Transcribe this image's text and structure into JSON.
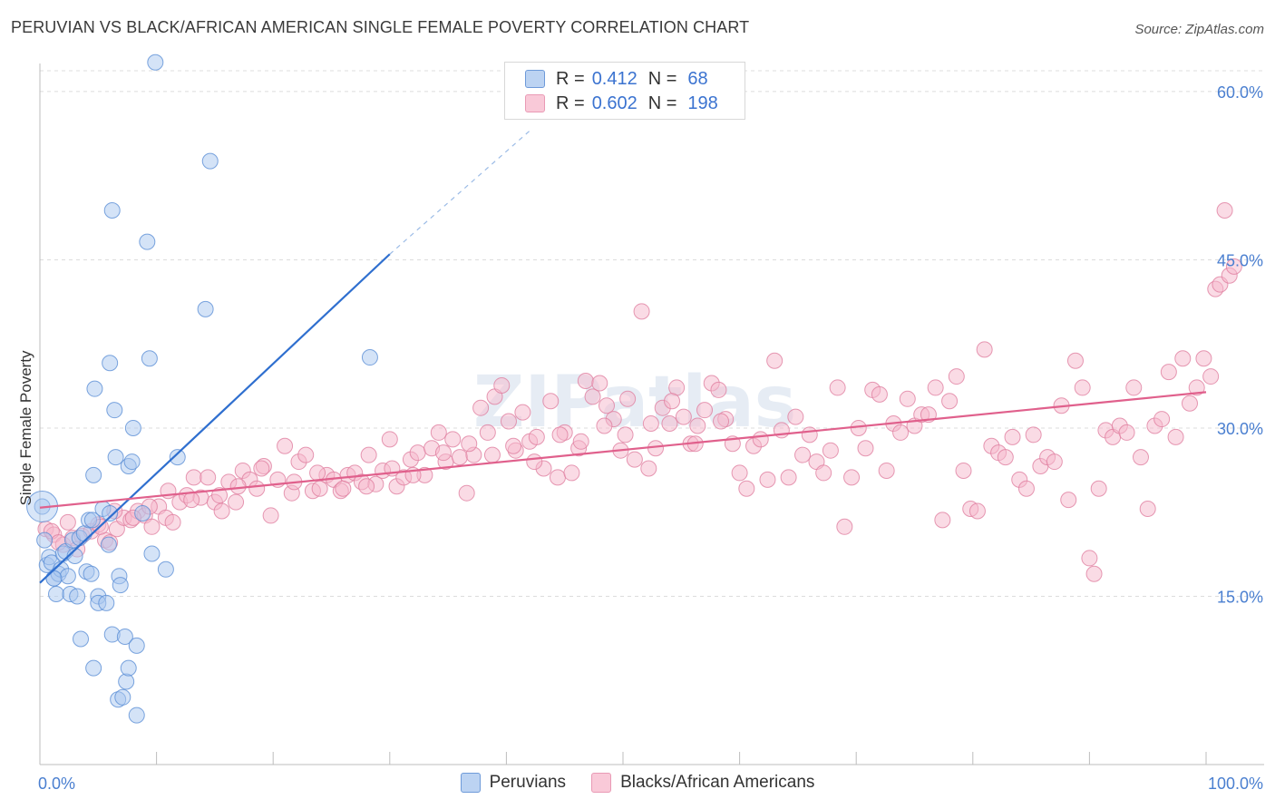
{
  "title": "PERUVIAN VS BLACK/AFRICAN AMERICAN SINGLE FEMALE POVERTY CORRELATION CHART",
  "source": "Source: ZipAtlas.com",
  "colors": {
    "blue_fill": "#a9c7ef",
    "blue_stroke": "#5b8fd6",
    "blue_line": "#2f6fcf",
    "pink_fill": "#f5b8cb",
    "pink_stroke": "#e07fa0",
    "pink_line": "#e0608c",
    "axis_label": "#4a7fd0"
  },
  "legend": {
    "r_label": "R =",
    "n_label": "N =",
    "rows": [
      {
        "r": "0.412",
        "n": "68",
        "series": "Peruvians"
      },
      {
        "r": "0.602",
        "n": "198",
        "series": "Blacks/African Americans"
      }
    ]
  },
  "bottom_legend": [
    "Peruvians",
    "Blacks/African Americans"
  ],
  "chart_data": {
    "type": "scatter",
    "title": "PERUVIAN VS BLACK/AFRICAN AMERICAN SINGLE FEMALE POVERTY CORRELATION CHART",
    "xlabel": "",
    "ylabel": "Single Female Poverty",
    "xlim": [
      0,
      100
    ],
    "ylim": [
      0,
      62.5
    ],
    "x_tick_labels": [
      "0.0%",
      "100.0%"
    ],
    "y_ticks": [
      15,
      30,
      45,
      60
    ],
    "y_tick_labels": [
      "15.0%",
      "30.0%",
      "45.0%",
      "60.0%"
    ],
    "grid": "horizontal dashed",
    "legend_position": "top-center",
    "series": [
      {
        "name": "Peruvians",
        "color": "#a9c7ef",
        "trend": {
          "x0": 0,
          "y0": 16.2,
          "x1": 30,
          "y1": 45.5,
          "dashed_to_x": 42,
          "dashed_to_y": 56.5
        },
        "points": [
          [
            0.2,
            23.0
          ],
          [
            0.4,
            20.0
          ],
          [
            0.6,
            17.8
          ],
          [
            0.8,
            18.5
          ],
          [
            1.0,
            18.0
          ],
          [
            1.2,
            16.6
          ],
          [
            1.4,
            15.2
          ],
          [
            1.6,
            17.0
          ],
          [
            1.8,
            17.4
          ],
          [
            2.0,
            18.8
          ],
          [
            2.2,
            19.0
          ],
          [
            2.4,
            16.8
          ],
          [
            2.6,
            15.2
          ],
          [
            2.8,
            20.0
          ],
          [
            3.0,
            18.6
          ],
          [
            3.2,
            15.0
          ],
          [
            3.4,
            20.2
          ],
          [
            3.5,
            11.2
          ],
          [
            3.8,
            20.6
          ],
          [
            4.0,
            17.2
          ],
          [
            4.2,
            21.8
          ],
          [
            4.4,
            17.0
          ],
          [
            4.5,
            21.8
          ],
          [
            4.6,
            25.8
          ],
          [
            4.7,
            33.5
          ],
          [
            4.6,
            8.6
          ],
          [
            5.0,
            15.0
          ],
          [
            5.0,
            14.4
          ],
          [
            5.4,
            22.8
          ],
          [
            5.7,
            14.4
          ],
          [
            5.9,
            19.6
          ],
          [
            6.0,
            22.4
          ],
          [
            6.0,
            35.8
          ],
          [
            6.2,
            11.6
          ],
          [
            6.2,
            49.4
          ],
          [
            6.4,
            31.6
          ],
          [
            6.5,
            27.4
          ],
          [
            6.7,
            5.8
          ],
          [
            6.8,
            16.8
          ],
          [
            6.9,
            16.0
          ],
          [
            7.1,
            6.0
          ],
          [
            7.3,
            11.4
          ],
          [
            7.4,
            7.4
          ],
          [
            7.6,
            8.6
          ],
          [
            7.6,
            26.6
          ],
          [
            7.9,
            27.0
          ],
          [
            8.0,
            30.0
          ],
          [
            8.3,
            10.6
          ],
          [
            8.3,
            4.4
          ],
          [
            8.8,
            22.4
          ],
          [
            9.2,
            46.6
          ],
          [
            9.4,
            36.2
          ],
          [
            9.6,
            18.8
          ],
          [
            9.9,
            62.6
          ],
          [
            10.8,
            17.4
          ],
          [
            11.8,
            27.4
          ],
          [
            14.2,
            40.6
          ],
          [
            14.6,
            53.8
          ],
          [
            28.3,
            36.3
          ],
          [
            1.2,
            16.6
          ]
        ]
      },
      {
        "name": "Blacks/African Americans",
        "color": "#f5b8cb",
        "trend": {
          "x0": 0,
          "y0": 22.9,
          "x1": 100,
          "y1": 33.2
        },
        "points": [
          [
            0.5,
            21.0
          ],
          [
            1.2,
            20.5
          ],
          [
            2.0,
            19.6
          ],
          [
            2.8,
            20.2
          ],
          [
            3.6,
            20.4
          ],
          [
            4.4,
            20.8
          ],
          [
            5.0,
            21.4
          ],
          [
            5.6,
            20.0
          ],
          [
            6.0,
            19.8
          ],
          [
            6.6,
            21.0
          ],
          [
            7.2,
            22.0
          ],
          [
            7.8,
            21.8
          ],
          [
            8.4,
            22.6
          ],
          [
            9.0,
            22.2
          ],
          [
            9.6,
            21.2
          ],
          [
            10.2,
            23.0
          ],
          [
            10.8,
            22.0
          ],
          [
            11.4,
            21.6
          ],
          [
            12.0,
            23.4
          ],
          [
            12.6,
            24.0
          ],
          [
            13.2,
            25.6
          ],
          [
            13.8,
            23.8
          ],
          [
            14.4,
            25.6
          ],
          [
            15.0,
            23.4
          ],
          [
            15.6,
            22.6
          ],
          [
            16.2,
            25.2
          ],
          [
            16.8,
            23.4
          ],
          [
            17.4,
            26.2
          ],
          [
            18.0,
            25.4
          ],
          [
            18.6,
            24.6
          ],
          [
            19.2,
            26.6
          ],
          [
            19.8,
            22.2
          ],
          [
            20.4,
            25.4
          ],
          [
            21.0,
            28.4
          ],
          [
            21.6,
            24.2
          ],
          [
            22.2,
            27.0
          ],
          [
            22.8,
            27.6
          ],
          [
            23.4,
            24.4
          ],
          [
            24.0,
            24.6
          ],
          [
            24.6,
            25.8
          ],
          [
            25.2,
            25.4
          ],
          [
            25.8,
            24.4
          ],
          [
            26.4,
            25.8
          ],
          [
            27.0,
            26.0
          ],
          [
            27.6,
            25.2
          ],
          [
            28.2,
            27.6
          ],
          [
            28.8,
            25.0
          ],
          [
            29.4,
            26.2
          ],
          [
            30.0,
            29.0
          ],
          [
            30.6,
            24.8
          ],
          [
            31.2,
            25.6
          ],
          [
            31.8,
            27.2
          ],
          [
            32.4,
            27.8
          ],
          [
            33.0,
            25.8
          ],
          [
            33.6,
            28.2
          ],
          [
            34.2,
            29.6
          ],
          [
            34.8,
            27.0
          ],
          [
            35.4,
            29.0
          ],
          [
            36.0,
            27.4
          ],
          [
            36.6,
            24.2
          ],
          [
            37.2,
            27.6
          ],
          [
            37.8,
            31.8
          ],
          [
            38.4,
            29.6
          ],
          [
            39.0,
            32.8
          ],
          [
            39.6,
            33.8
          ],
          [
            40.2,
            30.6
          ],
          [
            40.8,
            28.0
          ],
          [
            41.4,
            31.4
          ],
          [
            42.0,
            28.8
          ],
          [
            42.6,
            29.2
          ],
          [
            43.2,
            26.4
          ],
          [
            43.8,
            32.4
          ],
          [
            44.4,
            25.6
          ],
          [
            45.0,
            29.6
          ],
          [
            45.6,
            26.0
          ],
          [
            46.2,
            28.2
          ],
          [
            46.8,
            34.2
          ],
          [
            47.4,
            32.8
          ],
          [
            48.0,
            34.0
          ],
          [
            48.6,
            32.0
          ],
          [
            49.2,
            30.8
          ],
          [
            49.8,
            28.0
          ],
          [
            50.4,
            32.6
          ],
          [
            51.0,
            27.2
          ],
          [
            51.6,
            40.4
          ],
          [
            52.2,
            26.4
          ],
          [
            52.8,
            28.2
          ],
          [
            53.4,
            31.8
          ],
          [
            54.0,
            30.4
          ],
          [
            54.6,
            33.6
          ],
          [
            55.2,
            31.0
          ],
          [
            55.8,
            28.6
          ],
          [
            56.4,
            30.2
          ],
          [
            57.0,
            31.6
          ],
          [
            57.6,
            34.0
          ],
          [
            58.2,
            33.4
          ],
          [
            58.8,
            30.8
          ],
          [
            59.4,
            28.6
          ],
          [
            60.0,
            26.0
          ],
          [
            60.6,
            24.6
          ],
          [
            61.2,
            28.4
          ],
          [
            61.8,
            29.0
          ],
          [
            62.4,
            25.4
          ],
          [
            63.0,
            36.0
          ],
          [
            63.6,
            29.8
          ],
          [
            64.2,
            25.6
          ],
          [
            64.8,
            31.0
          ],
          [
            65.4,
            27.6
          ],
          [
            66.0,
            29.4
          ],
          [
            66.6,
            27.0
          ],
          [
            67.2,
            26.0
          ],
          [
            67.8,
            28.0
          ],
          [
            68.4,
            33.6
          ],
          [
            69.0,
            21.2
          ],
          [
            69.6,
            25.6
          ],
          [
            70.2,
            30.0
          ],
          [
            70.8,
            28.2
          ],
          [
            71.4,
            33.4
          ],
          [
            72.0,
            33.0
          ],
          [
            72.6,
            26.2
          ],
          [
            73.2,
            30.4
          ],
          [
            73.8,
            29.6
          ],
          [
            74.4,
            32.6
          ],
          [
            75.0,
            30.2
          ],
          [
            75.6,
            31.2
          ],
          [
            76.2,
            31.2
          ],
          [
            76.8,
            33.6
          ],
          [
            77.4,
            21.8
          ],
          [
            78.0,
            32.4
          ],
          [
            78.6,
            34.6
          ],
          [
            79.2,
            26.2
          ],
          [
            79.8,
            22.8
          ],
          [
            80.4,
            22.6
          ],
          [
            81.0,
            37.0
          ],
          [
            81.6,
            28.4
          ],
          [
            82.2,
            27.8
          ],
          [
            82.8,
            27.4
          ],
          [
            83.4,
            29.2
          ],
          [
            84.0,
            25.4
          ],
          [
            84.6,
            24.6
          ],
          [
            85.2,
            29.4
          ],
          [
            85.8,
            26.6
          ],
          [
            86.4,
            27.4
          ],
          [
            87.0,
            27.0
          ],
          [
            87.6,
            32.0
          ],
          [
            88.2,
            23.6
          ],
          [
            88.8,
            36.0
          ],
          [
            89.4,
            33.6
          ],
          [
            90.0,
            18.4
          ],
          [
            90.4,
            17.0
          ],
          [
            90.8,
            24.6
          ],
          [
            91.4,
            29.8
          ],
          [
            92.0,
            29.2
          ],
          [
            92.6,
            30.2
          ],
          [
            93.2,
            29.6
          ],
          [
            93.8,
            33.6
          ],
          [
            94.4,
            27.4
          ],
          [
            95.0,
            22.8
          ],
          [
            95.6,
            30.2
          ],
          [
            96.2,
            30.8
          ],
          [
            96.8,
            35.0
          ],
          [
            97.4,
            29.2
          ],
          [
            98.0,
            36.2
          ],
          [
            98.6,
            32.2
          ],
          [
            99.2,
            33.6
          ],
          [
            99.8,
            36.2
          ],
          [
            100.4,
            34.6
          ],
          [
            100.8,
            42.4
          ],
          [
            101.2,
            42.8
          ],
          [
            101.6,
            49.4
          ],
          [
            102.0,
            43.6
          ],
          [
            102.4,
            44.4
          ],
          [
            1.0,
            20.8
          ],
          [
            1.6,
            19.8
          ],
          [
            2.4,
            21.6
          ],
          [
            3.2,
            19.2
          ],
          [
            5.2,
            21.2
          ],
          [
            6.4,
            22.6
          ],
          [
            8.0,
            22.0
          ],
          [
            9.4,
            23.0
          ],
          [
            11.0,
            24.4
          ],
          [
            13.0,
            23.6
          ],
          [
            15.4,
            24.0
          ],
          [
            17.0,
            24.8
          ],
          [
            19.0,
            26.4
          ],
          [
            21.8,
            25.2
          ],
          [
            23.8,
            26.0
          ],
          [
            26.0,
            24.6
          ],
          [
            28.0,
            24.8
          ],
          [
            30.2,
            26.4
          ],
          [
            32.0,
            25.8
          ],
          [
            34.6,
            27.8
          ],
          [
            36.8,
            28.6
          ],
          [
            38.8,
            27.6
          ],
          [
            40.6,
            28.4
          ],
          [
            42.4,
            27.0
          ],
          [
            44.6,
            29.4
          ],
          [
            46.4,
            28.8
          ],
          [
            48.4,
            30.2
          ],
          [
            50.2,
            29.4
          ],
          [
            52.4,
            30.4
          ],
          [
            54.2,
            32.4
          ],
          [
            56.2,
            28.6
          ],
          [
            58.4,
            30.6
          ]
        ]
      }
    ]
  }
}
